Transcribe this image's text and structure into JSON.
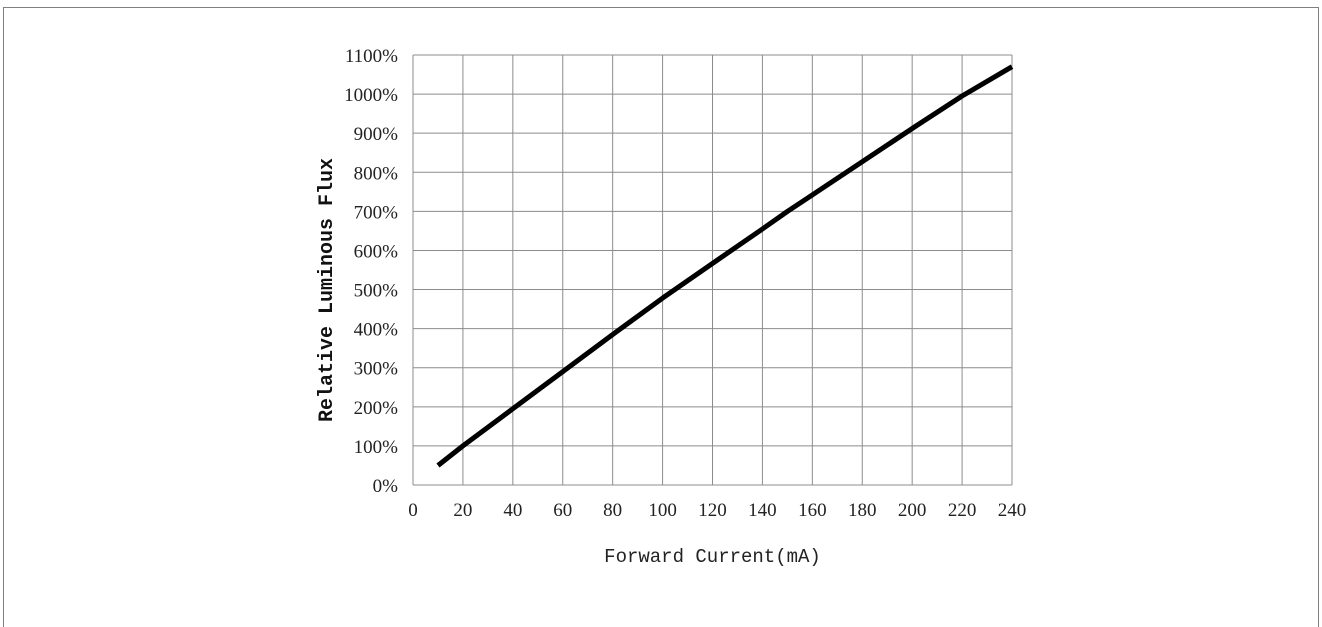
{
  "chart_data": {
    "type": "line",
    "title": "",
    "xlabel": "Forward Current(mA)",
    "ylabel": "Relative Luminous Flux",
    "xlim": [
      0,
      240
    ],
    "ylim": [
      0,
      1100
    ],
    "x_ticks": [
      0,
      20,
      40,
      60,
      80,
      100,
      120,
      140,
      160,
      180,
      200,
      220,
      240
    ],
    "y_ticks": [
      0,
      100,
      200,
      300,
      400,
      500,
      600,
      700,
      800,
      900,
      1000,
      1100
    ],
    "x_tick_labels": [
      "0",
      "20",
      "40",
      "60",
      "80",
      "100",
      "120",
      "140",
      "160",
      "180",
      "200",
      "220",
      "240"
    ],
    "y_tick_labels": [
      "0%",
      "100%",
      "200%",
      "300%",
      "400%",
      "500%",
      "600%",
      "700%",
      "800%",
      "900%",
      "1000%",
      "1100%"
    ],
    "grid": true,
    "legend": "none",
    "series": [
      {
        "color": "#000000",
        "x": [
          10,
          20,
          40,
          60,
          80,
          100,
          120,
          140,
          150,
          160,
          180,
          200,
          220,
          240
        ],
        "y": [
          50,
          100,
          195,
          290,
          385,
          478,
          567,
          655,
          700,
          742,
          827,
          912,
          995,
          1070
        ]
      }
    ]
  }
}
